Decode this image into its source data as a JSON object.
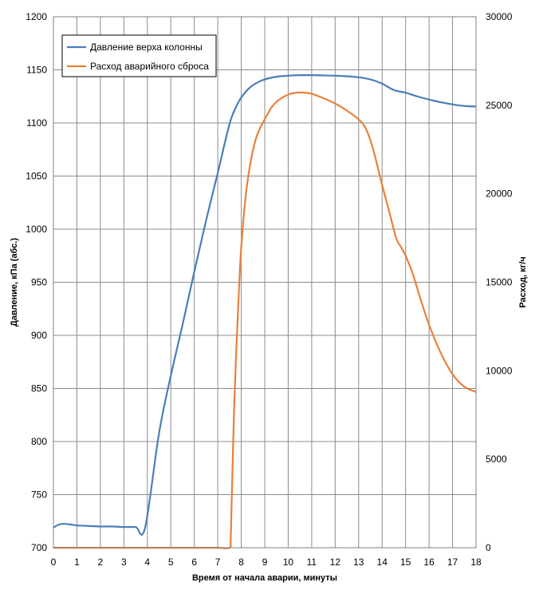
{
  "chart_data": {
    "type": "line",
    "xlabel": "Время от начала аварии,  минуты",
    "ylabel_left": "Давление, кПа (абс.)",
    "ylabel_right": "Расход, кг/ч",
    "x_range": [
      0,
      18
    ],
    "x_ticks": [
      "0",
      "1",
      "2",
      "3",
      "4",
      "5",
      "6",
      "7",
      "8",
      "9",
      "10",
      "11",
      "12",
      "13",
      "14",
      "15",
      "16",
      "17",
      "18"
    ],
    "y_left_range": [
      700,
      1200
    ],
    "y_left_ticks": [
      "700",
      "750",
      "800",
      "850",
      "900",
      "950",
      "1000",
      "1050",
      "1100",
      "1150",
      "1200"
    ],
    "y_right_range": [
      0,
      30000
    ],
    "y_right_ticks": [
      "0",
      "5000",
      "10000",
      "15000",
      "20000",
      "25000",
      "30000"
    ],
    "grid": true,
    "legend_position": "top-left",
    "colors": {
      "pressure": "#4a7ebb",
      "flow": "#e8803b",
      "grid": "#8c8c8c",
      "frame": "#808080"
    },
    "series": [
      {
        "name": "Давление верха колонны",
        "axis": "left",
        "x": [
          0,
          0.2,
          0.4,
          0.7,
          1,
          1.5,
          2,
          2.5,
          3,
          3.5,
          3.9,
          4.5,
          5,
          5.5,
          6,
          6.5,
          7,
          7.5,
          7.8,
          8,
          8.3,
          8.6,
          9,
          9.5,
          10,
          10.5,
          11,
          11.5,
          12,
          12.5,
          13,
          13.5,
          14,
          14.5,
          15,
          15.5,
          16,
          16.5,
          17,
          17.5,
          18
        ],
        "values": [
          719,
          721.5,
          722.5,
          722,
          721,
          720.5,
          720,
          720,
          719.5,
          719.5,
          718.5,
          808,
          862,
          910,
          960,
          1008,
          1053,
          1099,
          1116,
          1124,
          1132,
          1137,
          1141,
          1143.5,
          1144.5,
          1145,
          1145,
          1144.8,
          1144.5,
          1144,
          1143,
          1141,
          1137,
          1131,
          1128.5,
          1125,
          1122,
          1119.5,
          1117.5,
          1116,
          1115.5
        ]
      },
      {
        "name": "Расход аварийного сброса",
        "axis": "right",
        "x": [
          0,
          1,
          2,
          3,
          4,
          5,
          6,
          7,
          7.5,
          7.55,
          7.6,
          7.7,
          7.8,
          7.9,
          8,
          8.2,
          8.4,
          8.6,
          8.8,
          9,
          9.3,
          9.6,
          10,
          10.3,
          10.6,
          11,
          11.5,
          12,
          12.5,
          13,
          13.3,
          13.6,
          14,
          14.3,
          14.6,
          14.8,
          15,
          15.3,
          15.6,
          16,
          16.5,
          17,
          17.5,
          18
        ],
        "values": [
          0,
          0,
          0,
          0,
          0,
          0,
          0,
          0,
          0,
          500,
          3000,
          8000,
          11500,
          14500,
          17000,
          20000,
          21800,
          23000,
          23700,
          24200,
          24900,
          25300,
          25600,
          25700,
          25720,
          25650,
          25400,
          25100,
          24700,
          24200,
          23700,
          22600,
          20500,
          19000,
          17500,
          17000,
          16500,
          15500,
          14200,
          12600,
          11000,
          9800,
          9100,
          8800
        ]
      }
    ]
  }
}
